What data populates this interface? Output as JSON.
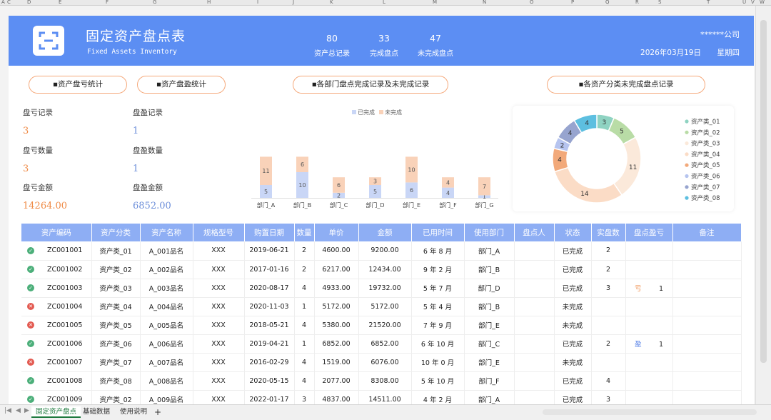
{
  "excel": {
    "column_letters": [
      "A",
      "C",
      "D",
      "E",
      "F",
      "G",
      "H",
      "I",
      "J",
      "K",
      "L",
      "M",
      "N",
      "O",
      "P",
      "Q",
      "R",
      "S",
      "T",
      "U",
      "V",
      "W"
    ],
    "sheet_tabs": [
      "固定资产盘点",
      "基础数据",
      "使用说明"
    ],
    "add_tab_label": "+"
  },
  "banner": {
    "title": "固定资产盘点表",
    "subtitle": "Fixed Assets Inventory",
    "stats": [
      {
        "value": "80",
        "label": "资产总记录"
      },
      {
        "value": "33",
        "label": "完成盘点"
      },
      {
        "value": "47",
        "label": "未完成盘点"
      }
    ],
    "company": "******公司",
    "date": "2026年03月19日",
    "weekday": "星期四",
    "logo_icon": "scan-frame-icon"
  },
  "sections": {
    "loss_stats": "▪资产盘亏统计",
    "gain_stats": "▪资产盘盈统计",
    "dept_chart": "▪各部门盘点完成记录及未完成记录",
    "category_chart": "▪各资产分类未完成盘点记录"
  },
  "loss": {
    "records_label": "盘亏记录",
    "records_value": "3",
    "qty_label": "盘亏数量",
    "qty_value": "3",
    "amount_label": "盘亏金额",
    "amount_value": "14264.00"
  },
  "gain": {
    "records_label": "盘盈记录",
    "records_value": "1",
    "qty_label": "盘盈数量",
    "qty_value": "1",
    "amount_label": "盘盈金额",
    "amount_value": "6852.00"
  },
  "chart_data": [
    {
      "type": "bar",
      "stacked": true,
      "title": "",
      "legend_position": "top",
      "categories": [
        "部门_A",
        "部门_B",
        "部门_C",
        "部门_D",
        "部门_E",
        "部门_F",
        "部门_G"
      ],
      "series": [
        {
          "name": "已完成",
          "color": "#c9d6f6",
          "values": [
            5,
            10,
            2,
            5,
            6,
            4,
            1
          ]
        },
        {
          "name": "未完成",
          "color": "#f9d2b9",
          "values": [
            11,
            6,
            6,
            3,
            10,
            4,
            7
          ]
        }
      ]
    },
    {
      "type": "pie",
      "donut": true,
      "title": "",
      "legend_position": "right",
      "categories": [
        "资产类_01",
        "资产类_02",
        "资产类_03",
        "资产类_04",
        "资产类_05",
        "资产类_06",
        "资产类_07",
        "资产类_08"
      ],
      "values": [
        3,
        5,
        11,
        14,
        4,
        2,
        4,
        4
      ],
      "colors": [
        "#8fd3c2",
        "#b9dca6",
        "#fbe9da",
        "#fbdcc6",
        "#f2a97a",
        "#b6c4ef",
        "#97a4cf",
        "#5dbfe0"
      ]
    }
  ],
  "table": {
    "headers": [
      "资产编码",
      "资产分类",
      "资产名称",
      "规格型号",
      "购置日期",
      "数量",
      "单价",
      "金额",
      "已用时间",
      "使用部门",
      "盘点人",
      "状态",
      "实盘数",
      "盘点盈亏",
      "备注"
    ],
    "rows": [
      {
        "ok": true,
        "code": "ZC001001",
        "cat": "资产类_01",
        "name": "A_001品名",
        "spec": "XXX",
        "date": "2019-06-21",
        "qty": "2",
        "price": "4600.00",
        "amount": "9200.00",
        "used": "6 年 8 月",
        "dept": "部门_A",
        "person": "",
        "status": "已完成",
        "actual": "2",
        "pl_type": "",
        "pl_qty": "",
        "note": ""
      },
      {
        "ok": true,
        "code": "ZC001002",
        "cat": "资产类_02",
        "name": "A_002品名",
        "spec": "XXX",
        "date": "2017-01-16",
        "qty": "2",
        "price": "6217.00",
        "amount": "12434.00",
        "used": "9 年 2 月",
        "dept": "部门_B",
        "person": "",
        "status": "已完成",
        "actual": "2",
        "pl_type": "",
        "pl_qty": "",
        "note": ""
      },
      {
        "ok": true,
        "code": "ZC001003",
        "cat": "资产类_03",
        "name": "A_003品名",
        "spec": "XXX",
        "date": "2020-08-17",
        "qty": "4",
        "price": "4933.00",
        "amount": "19732.00",
        "used": "5 年 7 月",
        "dept": "部门_D",
        "person": "",
        "status": "已完成",
        "actual": "3",
        "pl_type": "亏",
        "pl_qty": "1",
        "note": ""
      },
      {
        "ok": false,
        "code": "ZC001004",
        "cat": "资产类_04",
        "name": "A_004品名",
        "spec": "XXX",
        "date": "2020-11-03",
        "qty": "1",
        "price": "5172.00",
        "amount": "5172.00",
        "used": "5 年 4 月",
        "dept": "部门_B",
        "person": "",
        "status": "未完成",
        "actual": "",
        "pl_type": "",
        "pl_qty": "",
        "note": ""
      },
      {
        "ok": false,
        "code": "ZC001005",
        "cat": "资产类_05",
        "name": "A_005品名",
        "spec": "XXX",
        "date": "2018-05-21",
        "qty": "4",
        "price": "5380.00",
        "amount": "21520.00",
        "used": "7 年 9 月",
        "dept": "部门_E",
        "person": "",
        "status": "未完成",
        "actual": "",
        "pl_type": "",
        "pl_qty": "",
        "note": ""
      },
      {
        "ok": true,
        "code": "ZC001006",
        "cat": "资产类_06",
        "name": "A_006品名",
        "spec": "XXX",
        "date": "2019-04-21",
        "qty": "1",
        "price": "6852.00",
        "amount": "6852.00",
        "used": "6 年 10 月",
        "dept": "部门_C",
        "person": "",
        "status": "已完成",
        "actual": "2",
        "pl_type": "盈",
        "pl_qty": "1",
        "note": ""
      },
      {
        "ok": false,
        "code": "ZC001007",
        "cat": "资产类_07",
        "name": "A_007品名",
        "spec": "XXX",
        "date": "2016-02-29",
        "qty": "4",
        "price": "1519.00",
        "amount": "6076.00",
        "used": "10 年 0 月",
        "dept": "部门_E",
        "person": "",
        "status": "未完成",
        "actual": "",
        "pl_type": "",
        "pl_qty": "",
        "note": ""
      },
      {
        "ok": true,
        "code": "ZC001008",
        "cat": "资产类_08",
        "name": "A_008品名",
        "spec": "XXX",
        "date": "2020-05-15",
        "qty": "4",
        "price": "2077.00",
        "amount": "8308.00",
        "used": "5 年 10 月",
        "dept": "部门_F",
        "person": "",
        "status": "已完成",
        "actual": "4",
        "pl_type": "",
        "pl_qty": "",
        "note": ""
      },
      {
        "ok": true,
        "code": "ZC001009",
        "cat": "资产类_02",
        "name": "A_009品名",
        "spec": "XXX",
        "date": "2022-01-17",
        "qty": "3",
        "price": "4837.00",
        "amount": "14511.00",
        "used": "4 年 2 月",
        "dept": "部门_A",
        "person": "",
        "status": "已完成",
        "actual": "3",
        "pl_type": "",
        "pl_qty": "",
        "note": ""
      }
    ]
  }
}
